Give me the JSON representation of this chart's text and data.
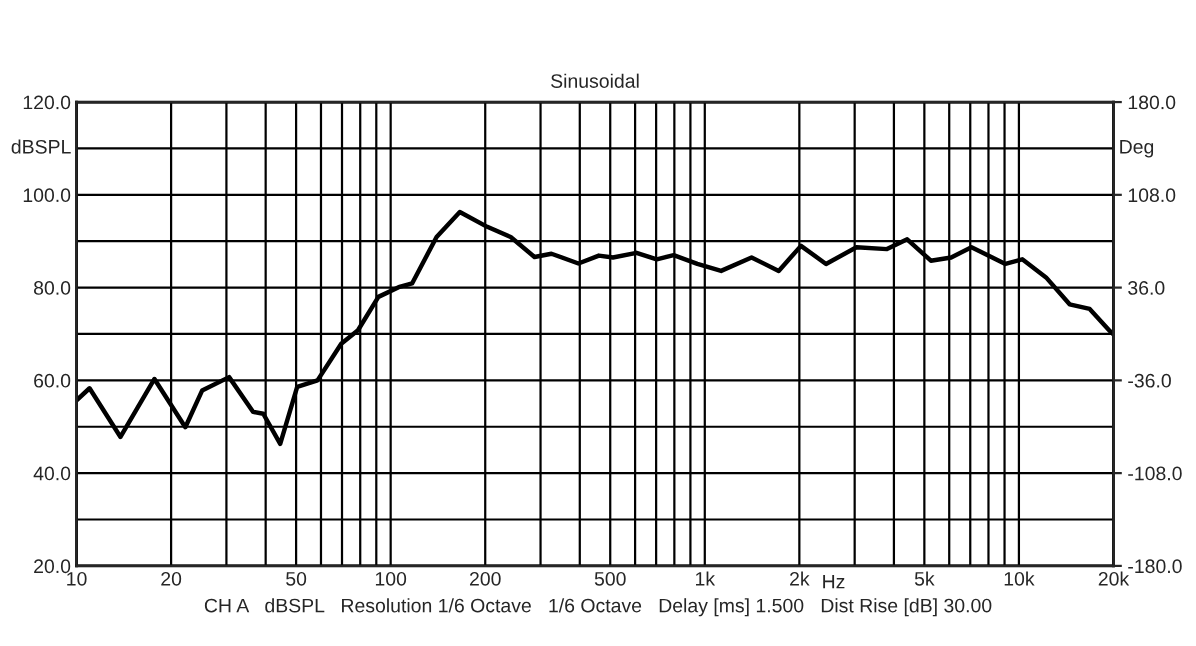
{
  "chart_data": {
    "type": "line",
    "title": "Sinusoidal",
    "xlabel": "Hz",
    "ylabel": "dBSPL",
    "y2label": "Deg",
    "annotations": [
      "CH A   dBSPL   Resolution 1/6 Octave   1/6 Octave   Delay [ms] 1.500   Dist Rise [dB] 30.00"
    ],
    "log": "x",
    "grid": true,
    "marker": "none",
    "line_style": "solid",
    "xlim": [
      10,
      20000
    ],
    "xticks": [
      {
        "value": 10,
        "label": "10"
      },
      {
        "value": 20,
        "label": "20"
      },
      {
        "value": 30,
        "label": null
      },
      {
        "value": 40,
        "label": null
      },
      {
        "value": 50,
        "label": "50"
      },
      {
        "value": 60,
        "label": null
      },
      {
        "value": 70,
        "label": null
      },
      {
        "value": 80,
        "label": null
      },
      {
        "value": 90,
        "label": null
      },
      {
        "value": 100,
        "label": "100"
      },
      {
        "value": 200,
        "label": "200"
      },
      {
        "value": 300,
        "label": null
      },
      {
        "value": 400,
        "label": null
      },
      {
        "value": 500,
        "label": "500"
      },
      {
        "value": 600,
        "label": null
      },
      {
        "value": 700,
        "label": null
      },
      {
        "value": 800,
        "label": null
      },
      {
        "value": 900,
        "label": null
      },
      {
        "value": 1000,
        "label": "1k"
      },
      {
        "value": 2000,
        "label": "2k"
      },
      {
        "value": 3000,
        "label": null
      },
      {
        "value": 4000,
        "label": null
      },
      {
        "value": 5000,
        "label": "5k"
      },
      {
        "value": 6000,
        "label": null
      },
      {
        "value": 7000,
        "label": null
      },
      {
        "value": 8000,
        "label": null
      },
      {
        "value": 9000,
        "label": null
      },
      {
        "value": 10000,
        "label": "10k"
      },
      {
        "value": 20000,
        "label": "20k"
      }
    ],
    "ylim": [
      20,
      120
    ],
    "yticks": [
      {
        "value": 20,
        "label": "20.0"
      },
      {
        "value": 30,
        "label": null
      },
      {
        "value": 40,
        "label": "40.0"
      },
      {
        "value": 50,
        "label": null
      },
      {
        "value": 60,
        "label": "60.0"
      },
      {
        "value": 70,
        "label": null
      },
      {
        "value": 80,
        "label": "80.0"
      },
      {
        "value": 90,
        "label": null
      },
      {
        "value": 100,
        "label": "100.0"
      },
      {
        "value": 110,
        "label": null
      },
      {
        "value": 120,
        "label": "120.0"
      }
    ],
    "y2lim": [
      -180,
      180
    ],
    "y2ticks": [
      {
        "value": -180,
        "label": "-180.0"
      },
      {
        "value": -108,
        "label": "-108.0"
      },
      {
        "value": -36,
        "label": "-36.0"
      },
      {
        "value": 36,
        "label": "36.0"
      },
      {
        "value": 108,
        "label": "108.0"
      },
      {
        "value": 180,
        "label": "180.0"
      }
    ],
    "series": [
      {
        "color": "#000000",
        "x": [
          10,
          11,
          13.8,
          17.7,
          22.2,
          25.1,
          30.6,
          36.5,
          39.3,
          44.5,
          50.4,
          58.5,
          69.6,
          78.7,
          91.4,
          106,
          117,
          140,
          166,
          203,
          241,
          287,
          325,
          396,
          460,
          510,
          606,
          703,
          796,
          947,
          1127,
          1409,
          1719,
          2024,
          2432,
          3041,
          3802,
          4409,
          5245,
          6086,
          7063,
          9057,
          10250,
          12200,
          14500,
          16800,
          19500,
          20000
        ],
        "values": [
          55.7,
          58.3,
          47.8,
          60.3,
          49.9,
          57.8,
          60.7,
          53.2,
          52.8,
          46.3,
          58.6,
          60,
          67.9,
          70.8,
          78,
          80.1,
          80.9,
          90.9,
          96.3,
          93.1,
          90.9,
          86.6,
          87.3,
          85.2,
          86.9,
          86.5,
          87.5,
          86.1,
          87,
          85.1,
          83.6,
          86.5,
          83.6,
          89,
          85.1,
          88.7,
          88.3,
          90.4,
          85.8,
          86.5,
          88.7,
          85.1,
          86.1,
          82.2,
          76.4,
          75.4,
          70.6,
          69.9
        ]
      }
    ]
  }
}
